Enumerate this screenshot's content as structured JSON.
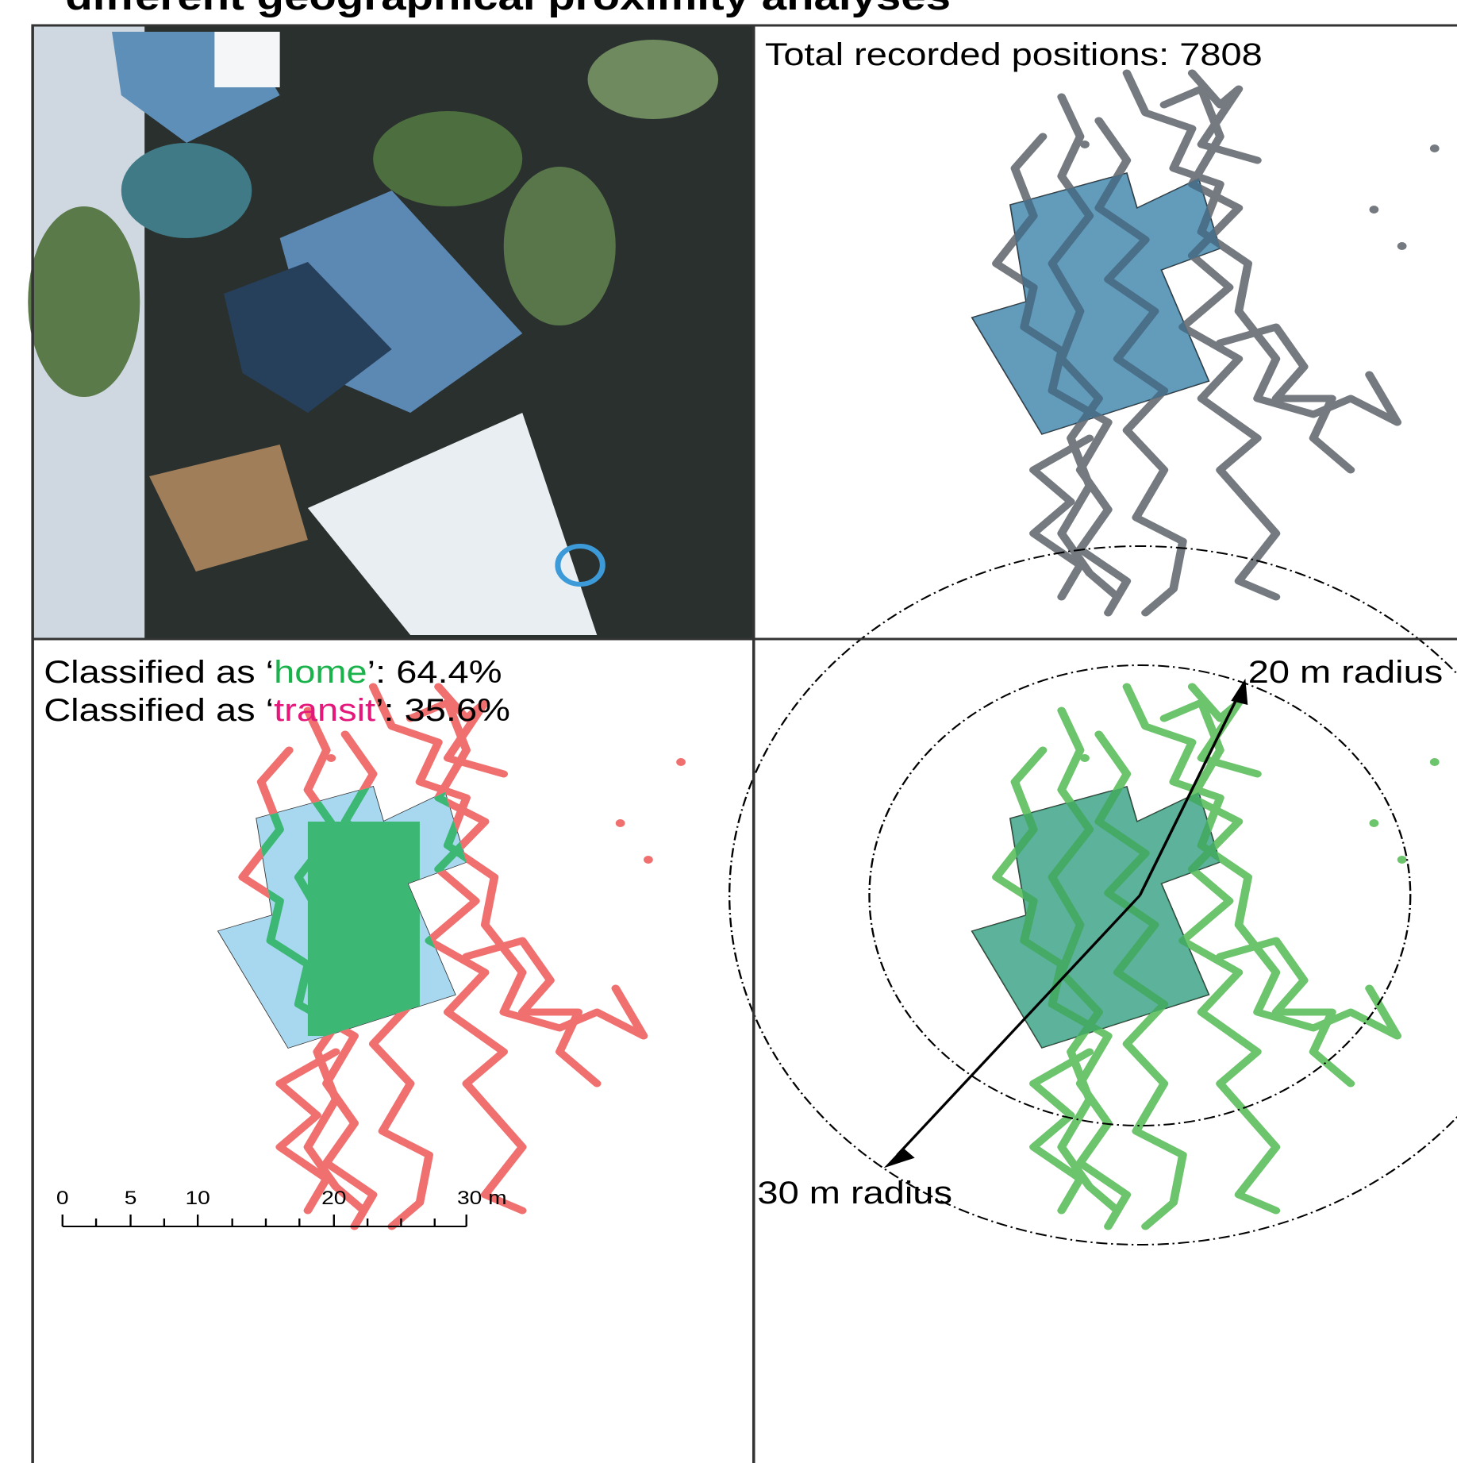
{
  "title": "different geographical proximity analyses",
  "panels": {
    "positions": "Total recorded positions: 7808",
    "classification": [
      {
        "before": "Classified as ‘",
        "term": "home",
        "after": "’: 64.4%"
      },
      {
        "before": "Classified as ‘",
        "term": "transit",
        "after": "’: 35.6%"
      }
    ],
    "radius": {
      "inner": "20 m radius",
      "outer": "30 m radius"
    },
    "scale_bar": [
      "0",
      "5",
      "10",
      "20",
      "30 m"
    ]
  }
}
